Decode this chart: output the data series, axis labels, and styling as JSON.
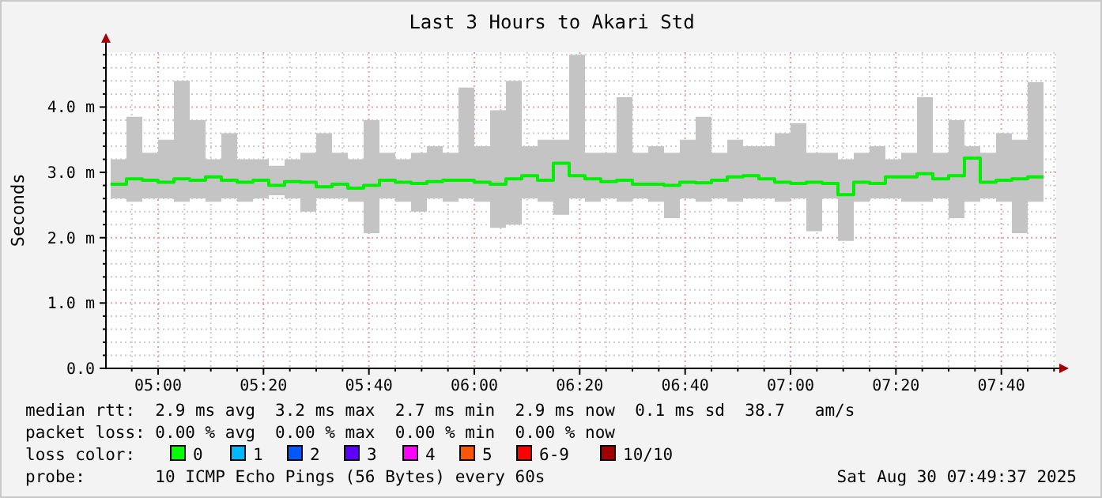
{
  "chart_data": {
    "type": "step",
    "title": "Last 3 Hours to Akari Std",
    "ylabel": "Seconds",
    "x": [
      4.85,
      4.9,
      4.95,
      5,
      5.05,
      5.1,
      5.15,
      5.2,
      5.25,
      5.3,
      5.35,
      5.4,
      5.45,
      5.5,
      5.55,
      5.6,
      5.65,
      5.7,
      5.75,
      5.8,
      5.85,
      5.9,
      5.95,
      6,
      6.05,
      6.1,
      6.15,
      6.2,
      6.25,
      6.3,
      6.35,
      6.4,
      6.45,
      6.5,
      6.55,
      6.6,
      6.65,
      6.7,
      6.75,
      6.8,
      6.85,
      6.9,
      6.95,
      7,
      7.05,
      7.1,
      7.15,
      7.2,
      7.25,
      7.3,
      7.35,
      7.4,
      7.45,
      7.5,
      7.55,
      7.6,
      7.65,
      7.7,
      7.75,
      7.8
    ],
    "series": [
      {
        "color": "#00ee00",
        "values": [
          2.82,
          2.9,
          2.88,
          2.85,
          2.9,
          2.88,
          2.93,
          2.88,
          2.85,
          2.88,
          2.8,
          2.86,
          2.85,
          2.78,
          2.82,
          2.76,
          2.8,
          2.88,
          2.85,
          2.83,
          2.86,
          2.88,
          2.88,
          2.85,
          2.82,
          2.9,
          2.95,
          2.88,
          3.14,
          2.95,
          2.9,
          2.86,
          2.88,
          2.82,
          2.82,
          2.8,
          2.85,
          2.84,
          2.88,
          2.93,
          2.95,
          2.9,
          2.85,
          2.83,
          2.85,
          2.83,
          2.66,
          2.85,
          2.83,
          2.93,
          2.93,
          2.98,
          2.9,
          2.95,
          3.22,
          2.85,
          2.88,
          2.9,
          2.93,
          2.93
        ],
        "lower": [
          2.6,
          2.55,
          2.6,
          2.6,
          2.55,
          2.6,
          2.55,
          2.6,
          2.55,
          2.6,
          2.65,
          2.6,
          2.4,
          2.6,
          2.6,
          2.55,
          2.07,
          2.6,
          2.55,
          2.4,
          2.6,
          2.55,
          2.6,
          2.55,
          2.15,
          2.2,
          2.6,
          2.55,
          2.35,
          2.6,
          2.55,
          2.6,
          2.55,
          2.6,
          2.55,
          2.3,
          2.6,
          2.55,
          2.6,
          2.55,
          2.6,
          2.6,
          2.55,
          2.6,
          2.1,
          2.6,
          1.95,
          2.55,
          2.6,
          2.6,
          2.55,
          2.55,
          2.6,
          2.3,
          2.55,
          2.6,
          2.55,
          2.07,
          2.55,
          2.6
        ],
        "upper": [
          3.2,
          3.85,
          3.3,
          3.5,
          4.4,
          3.8,
          3.2,
          3.6,
          3.2,
          3.2,
          3.1,
          3.2,
          3.3,
          3.6,
          3.3,
          3.2,
          3.8,
          3.3,
          3.2,
          3.3,
          3.4,
          3.3,
          4.3,
          3.4,
          3.95,
          4.4,
          3.4,
          3.5,
          3.5,
          4.8,
          3.3,
          3.3,
          4.15,
          3.3,
          3.4,
          3.3,
          3.5,
          3.85,
          3.3,
          3.5,
          3.4,
          3.4,
          3.6,
          3.75,
          3.3,
          3.3,
          3.2,
          3.3,
          3.4,
          3.2,
          3.3,
          4.15,
          3.3,
          3.8,
          3.4,
          3.3,
          3.6,
          3.5,
          4.38,
          3.7
        ]
      }
    ],
    "xlim": [
      4.835,
      7.84
    ],
    "xticks": [
      {
        "value": 4.9167,
        "label": null
      },
      {
        "value": 5,
        "label": "05:00"
      },
      {
        "value": 5.0833,
        "label": null
      },
      {
        "value": 5.1667,
        "label": null
      },
      {
        "value": 5.25,
        "label": null
      },
      {
        "value": 5.3333,
        "label": "05:20"
      },
      {
        "value": 5.4167,
        "label": null
      },
      {
        "value": 5.5,
        "label": null
      },
      {
        "value": 5.5833,
        "label": null
      },
      {
        "value": 5.6667,
        "label": "05:40"
      },
      {
        "value": 5.75,
        "label": null
      },
      {
        "value": 5.8333,
        "label": null
      },
      {
        "value": 5.9167,
        "label": null
      },
      {
        "value": 6,
        "label": "06:00"
      },
      {
        "value": 6.0833,
        "label": null
      },
      {
        "value": 6.1667,
        "label": null
      },
      {
        "value": 6.25,
        "label": null
      },
      {
        "value": 6.3333,
        "label": "06:20"
      },
      {
        "value": 6.4167,
        "label": null
      },
      {
        "value": 6.5,
        "label": null
      },
      {
        "value": 6.5833,
        "label": null
      },
      {
        "value": 6.6667,
        "label": "06:40"
      },
      {
        "value": 6.75,
        "label": null
      },
      {
        "value": 6.8333,
        "label": null
      },
      {
        "value": 6.9167,
        "label": null
      },
      {
        "value": 7,
        "label": "07:00"
      },
      {
        "value": 7.0833,
        "label": null
      },
      {
        "value": 7.1667,
        "label": null
      },
      {
        "value": 7.25,
        "label": null
      },
      {
        "value": 7.3333,
        "label": "07:20"
      },
      {
        "value": 7.4167,
        "label": null
      },
      {
        "value": 7.5,
        "label": null
      },
      {
        "value": 7.5833,
        "label": null
      },
      {
        "value": 7.6667,
        "label": "07:40"
      },
      {
        "value": 7.75,
        "label": null
      },
      {
        "value": 7.8333,
        "label": null
      }
    ],
    "ylim": [
      0,
      4.84
    ],
    "yticks": [
      {
        "value": 0,
        "label": "0.0"
      },
      {
        "value": 0.2,
        "label": null
      },
      {
        "value": 0.4,
        "label": null
      },
      {
        "value": 0.6,
        "label": null
      },
      {
        "value": 0.8,
        "label": null
      },
      {
        "value": 1,
        "label": "1.0 m"
      },
      {
        "value": 1.2,
        "label": null
      },
      {
        "value": 1.4,
        "label": null
      },
      {
        "value": 1.6,
        "label": null
      },
      {
        "value": 1.8,
        "label": null
      },
      {
        "value": 2,
        "label": "2.0 m"
      },
      {
        "value": 2.2,
        "label": null
      },
      {
        "value": 2.4,
        "label": null
      },
      {
        "value": 2.6,
        "label": null
      },
      {
        "value": 2.8,
        "label": null
      },
      {
        "value": 3,
        "label": "3.0 m"
      },
      {
        "value": 3.2,
        "label": null
      },
      {
        "value": 3.4,
        "label": null
      },
      {
        "value": 3.6,
        "label": null
      },
      {
        "value": 3.8,
        "label": null
      },
      {
        "value": 4,
        "label": "4.0 m"
      },
      {
        "value": 4.2,
        "label": null
      },
      {
        "value": 4.4,
        "label": null
      },
      {
        "value": 4.6,
        "label": null
      },
      {
        "value": 4.8,
        "label": null
      }
    ],
    "grid": true,
    "marker": "none",
    "line_style": "solid",
    "annotations": [
      "median rtt:  2.9 ms avg  3.2 ms max  2.7 ms min  2.9 ms now  0.1 ms sd  38.7   am/s",
      "packet loss: 0.00 % avg  0.00 % max  0.00 % min  0.00 % now",
      "loss color:",
      "0",
      "1",
      "2",
      "3",
      "4",
      "5",
      "6-9",
      "10/10",
      "probe:       10 ICMP Echo Pings (56 Bytes) every 60s",
      "Sat Aug 30 07:49:37 2025"
    ]
  }
}
